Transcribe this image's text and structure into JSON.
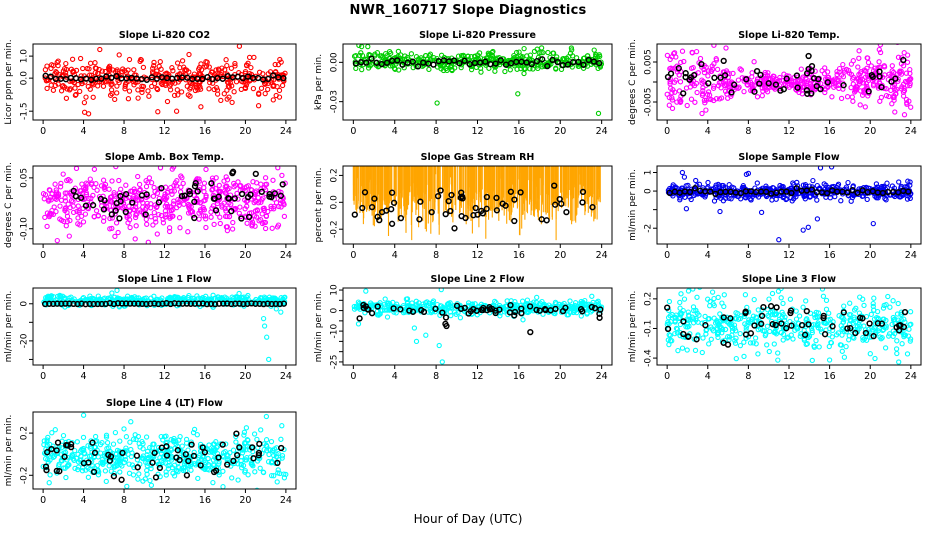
{
  "page": {
    "main_title": "NWR_160717  Slope Diagnostics",
    "x_axis_label": "Hour of Day (UTC)",
    "background": "#FFFFFF",
    "axis_color": "#000000",
    "overlay_color": "#000000"
  },
  "chart_data": {
    "type": "scatter",
    "title": "NWR_160717  Slope Diagnostics",
    "xlabel": "Hour of Day (UTC)",
    "x_range": [
      0,
      24
    ],
    "x_ticks": [
      0,
      4,
      8,
      12,
      16,
      20,
      24
    ],
    "grid": "off",
    "legend": "none",
    "panels": [
      {
        "id": "slope-li820-co2",
        "title": "Slope Li-820 CO2",
        "ylabel": "Licor ppm per min.",
        "color": "#FF0000",
        "symbol": "circle",
        "ylim": [
          -1.9,
          1.55
        ],
        "yticks": [
          {
            "v": 1.0,
            "label": "1.0"
          },
          {
            "v": 0.0,
            "label": "0.0"
          },
          {
            "v": -1.5,
            "label": "-1.5"
          }
        ],
        "cloud": {
          "n": 420,
          "center": 0.0,
          "sd": 0.45,
          "shape": "normal",
          "seed": 101
        },
        "outliers": [
          [
            19.4,
            1.45
          ],
          [
            5.6,
            1.3
          ],
          [
            4.1,
            -1.55
          ],
          [
            4.5,
            -1.62
          ],
          [
            13.2,
            -1.5
          ],
          [
            15.6,
            -1.3
          ],
          [
            21.3,
            -1.25
          ]
        ],
        "black": {
          "mode": "means",
          "center": 0.0,
          "jitter": 0.05,
          "step": 0.5
        }
      },
      {
        "id": "slope-li820-pressure",
        "title": "Slope Li-820 Pressure",
        "ylabel": "kPa per min.",
        "color": "#00CD00",
        "symbol": "circle",
        "ylim": [
          -0.044,
          0.014
        ],
        "yticks": [
          {
            "v": 0.0,
            "label": "0.00"
          },
          {
            "v": -0.03,
            "label": "-0.03"
          }
        ],
        "cloud": {
          "n": 430,
          "center": 0.0005,
          "sd": 0.0035,
          "shape": "normal",
          "seed": 202
        },
        "outliers": [
          [
            8.1,
            -0.031
          ],
          [
            15.9,
            -0.024
          ],
          [
            23.7,
            -0.039
          ],
          [
            0.8,
            0.012
          ],
          [
            1.4,
            0.012
          ],
          [
            16.5,
            0.0105
          ],
          [
            18.2,
            0.011
          ],
          [
            21.1,
            0.0095
          ]
        ],
        "black": {
          "mode": "means",
          "center": 0.0,
          "jitter": 0.0012,
          "step": 0.5
        }
      },
      {
        "id": "slope-li820-temp",
        "title": "Slope Li-820 Temp.",
        "ylabel": "degrees C per min.",
        "color": "#FF00FF",
        "symbol": "circle",
        "ylim": [
          -0.0095,
          0.0095
        ],
        "yticks": [
          {
            "v": 0.005,
            "label": "0.005"
          },
          {
            "v": 0.0,
            "label": ""
          },
          {
            "v": -0.005,
            "label": "-0.005"
          }
        ],
        "cloud": {
          "n": 520,
          "center": 0.0,
          "sd_min": 0.0011,
          "sd_max": 0.0042,
          "shape": "hourglass",
          "seed": 303
        },
        "outliers": [
          [
            4.6,
            0.0092
          ],
          [
            21.0,
            0.0093
          ],
          [
            18.9,
            0.0078
          ],
          [
            5.8,
            0.0085
          ]
        ],
        "black": {
          "mode": "scatter",
          "n": 52,
          "center": 0.0,
          "sd": 0.0024,
          "seed": 304
        }
      },
      {
        "id": "slope-amb-box-temp",
        "title": "Slope Amb. Box Temp.",
        "ylabel": "degrees C per min.",
        "color": "#FF00FF",
        "symbol": "circle",
        "ylim": [
          -0.145,
          0.085
        ],
        "yticks": [
          {
            "v": 0.05,
            "label": "0.05"
          },
          {
            "v": -0.1,
            "label": "-0.10"
          }
        ],
        "cloud": {
          "n": 540,
          "center": -0.02,
          "sd": 0.038,
          "shape": "normal",
          "seed": 405
        },
        "outliers": [
          [
            3.3,
            0.078
          ],
          [
            11.6,
            0.08
          ],
          [
            12.9,
            0.082
          ],
          [
            16.1,
            0.075
          ],
          [
            23.2,
            0.08
          ],
          [
            1.4,
            -0.135
          ],
          [
            9.1,
            -0.13
          ],
          [
            10.4,
            -0.14
          ]
        ],
        "black": {
          "mode": "scatter",
          "n": 55,
          "center": -0.012,
          "sd": 0.033,
          "seed": 406
        }
      },
      {
        "id": "slope-gas-stream-rh",
        "title": "Slope Gas Stream RH",
        "ylabel": "percent per min.",
        "color": "#FFA500",
        "symbol": "diamond",
        "ylim": [
          -0.31,
          0.27
        ],
        "yticks": [
          {
            "v": 0.2,
            "label": "0.2"
          },
          {
            "v": 0.0,
            "label": "0.0"
          },
          {
            "v": -0.2,
            "label": "-0.2"
          }
        ],
        "cloud": {
          "n": 600,
          "center": -0.01,
          "sd": 0.09,
          "shape": "normal",
          "seed": 507
        },
        "outliers": [
          [
            16.2,
            0.26
          ],
          [
            0.4,
            0.16
          ],
          [
            22.9,
            0.2
          ],
          [
            3.4,
            -0.27
          ],
          [
            8.3,
            -0.26
          ],
          [
            12.8,
            -0.29
          ],
          [
            19.6,
            -0.3
          ]
        ],
        "black": {
          "mode": "scatter",
          "n": 55,
          "center": -0.03,
          "sd": 0.075,
          "seed": 508
        }
      },
      {
        "id": "slope-sample-flow",
        "title": "Slope Sample Flow",
        "ylabel": "ml/min per min.",
        "color": "#0000EE",
        "symbol": "circle",
        "ylim": [
          -2.85,
          1.35
        ],
        "yticks": [
          {
            "v": 1,
            "label": "1"
          },
          {
            "v": 0,
            "label": "0"
          },
          {
            "v": -1,
            "label": ""
          },
          {
            "v": -2,
            "label": "-2"
          }
        ],
        "cloud": {
          "n": 500,
          "center": -0.05,
          "sd": 0.22,
          "shape": "normal",
          "seed": 609
        },
        "outliers": [
          [
            11.0,
            -2.62
          ],
          [
            13.4,
            -2.1
          ],
          [
            13.9,
            -1.95
          ],
          [
            20.3,
            -1.75
          ],
          [
            15.1,
            1.25
          ],
          [
            16.2,
            1.3
          ],
          [
            8.0,
            0.95
          ],
          [
            1.5,
            1.0
          ],
          [
            7.8,
            0.9
          ],
          [
            14.8,
            -1.5
          ],
          [
            5.2,
            -1.1
          ],
          [
            9.3,
            -1.15
          ],
          [
            1.7,
            0.75
          ],
          [
            1.9,
            -0.95
          ]
        ],
        "black": {
          "mode": "means",
          "center": -0.05,
          "jitter": 0.07,
          "step": 0.5
        }
      },
      {
        "id": "slope-line-1-flow",
        "title": "Slope Line 1 Flow",
        "ylabel": "ml/min per min.",
        "color": "#00FFFF",
        "symbol": "circle",
        "ylim": [
          -33,
          8.5
        ],
        "yticks": [
          {
            "v": 0,
            "label": "0"
          },
          {
            "v": -10,
            "label": ""
          },
          {
            "v": -20,
            "label": "-20"
          },
          {
            "v": -30,
            "label": ""
          }
        ],
        "cloud": {
          "n": 430,
          "center": 1.6,
          "sd": 1.4,
          "shape": "normal",
          "seed": 711
        },
        "outliers": [
          [
            7.3,
            7.2
          ],
          [
            6.8,
            5.8
          ],
          [
            21.9,
            -12
          ],
          [
            22.1,
            -18
          ],
          [
            21.8,
            -8
          ],
          [
            22.3,
            -30
          ],
          [
            23.5,
            -4.5
          ]
        ],
        "black": {
          "mode": "means",
          "center": 0.0,
          "jitter": 0.12,
          "step": 0.4
        }
      },
      {
        "id": "slope-line-2-flow",
        "title": "Slope Line 2 Flow",
        "ylabel": "ml/min per min.",
        "color": "#00FFFF",
        "symbol": "circle",
        "ylim": [
          -26.5,
          11
        ],
        "yticks": [
          {
            "v": 10,
            "label": "10"
          },
          {
            "v": 5,
            "label": ""
          },
          {
            "v": 0,
            "label": "0"
          },
          {
            "v": -5,
            "label": ""
          },
          {
            "v": -10,
            "label": "-10"
          },
          {
            "v": -15,
            "label": ""
          },
          {
            "v": -20,
            "label": ""
          },
          {
            "v": -25,
            "label": "-25"
          }
        ],
        "cloud": {
          "n": 430,
          "center": 1.4,
          "sd": 1.7,
          "shape": "normal",
          "seed": 813
        },
        "outliers": [
          [
            8.5,
            10.2
          ],
          [
            8.6,
            -25
          ],
          [
            8.3,
            -17
          ],
          [
            7.0,
            -12
          ],
          [
            5.9,
            -8.5
          ],
          [
            6.1,
            -15
          ],
          [
            1.2,
            9.5
          ],
          [
            0.5,
            -6.5
          ],
          [
            16.4,
            -4.5
          ]
        ],
        "black": {
          "mode": "scatter",
          "n": 55,
          "center": 0.2,
          "sd": 1.3,
          "seed": 814,
          "outliers": [
            [
              17.1,
              -10.5
            ],
            [
              9.0,
              -7.5
            ],
            [
              8.9,
              -6.5
            ],
            [
              0.6,
              -3.8
            ],
            [
              23.8,
              -3.5
            ]
          ]
        }
      },
      {
        "id": "slope-line-3-flow",
        "title": "Slope Line 3 Flow",
        "ylabel": "ml/min per min.",
        "color": "#00FFFF",
        "symbol": "circle",
        "ylim": [
          -0.47,
          0.31
        ],
        "yticks": [
          {
            "v": 0.2,
            "label": "0.2"
          },
          {
            "v": -0.1,
            "label": "-0.1"
          },
          {
            "v": -0.4,
            "label": "-0.4"
          }
        ],
        "cloud": {
          "n": 500,
          "center": -0.06,
          "sd": 0.13,
          "shape": "normal",
          "seed": 915
        },
        "outliers": [
          [
            22.8,
            -0.44
          ],
          [
            15.3,
            0.3
          ],
          [
            10.9,
            -0.42
          ],
          [
            2.1,
            0.28
          ]
        ],
        "black": {
          "mode": "scatter",
          "n": 55,
          "center": -0.05,
          "sd": 0.11,
          "seed": 916
        }
      },
      {
        "id": "slope-line-4-lt-flow",
        "title": "Slope Line 4 (LT) Flow",
        "ylabel": "ml/min per min.",
        "color": "#00FFFF",
        "symbol": "circle",
        "ylim": [
          -0.33,
          0.4
        ],
        "yticks": [
          {
            "v": 0.2,
            "label": "0.2"
          },
          {
            "v": -0.2,
            "label": "-0.2"
          }
        ],
        "cloud": {
          "n": 540,
          "center": -0.03,
          "sd": 0.11,
          "shape": "normal",
          "seed": 1017
        },
        "outliers": [
          [
            4.0,
            0.37
          ],
          [
            23.6,
            0.27
          ],
          [
            0.6,
            -0.27
          ],
          [
            8.0,
            0.24
          ],
          [
            20.1,
            0.25
          ]
        ],
        "black": {
          "mode": "scatter",
          "n": 60,
          "center": -0.03,
          "sd": 0.09,
          "seed": 1018
        }
      }
    ]
  }
}
